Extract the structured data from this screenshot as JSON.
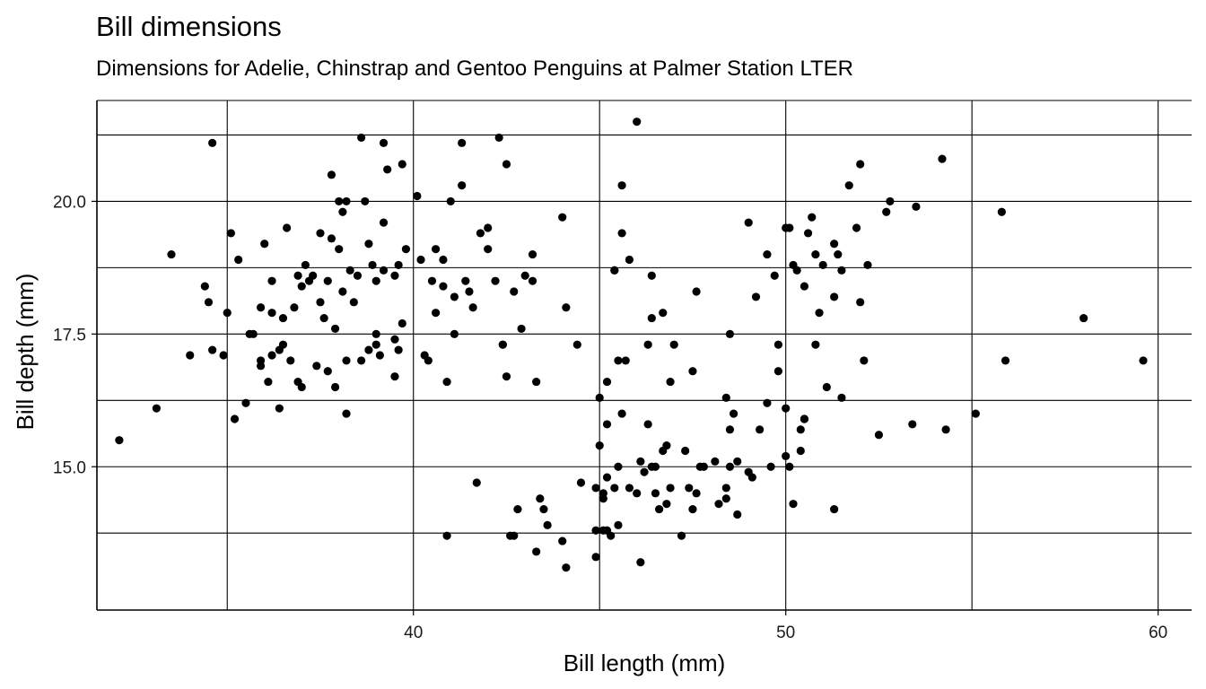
{
  "chart_data": {
    "type": "scatter",
    "title": "Bill dimensions",
    "subtitle": "Dimensions for Adelie, Chinstrap and Gentoo Penguins at Palmer Station LTER",
    "xlabel": "Bill length (mm)",
    "ylabel": "Bill depth (mm)",
    "xlim": [
      31.5,
      60.9
    ],
    "ylim": [
      12.3,
      21.9
    ],
    "x_ticks": [
      40,
      50,
      60
    ],
    "x_tick_labels": [
      "40",
      "50",
      "60"
    ],
    "y_ticks": [
      15.0,
      17.5,
      20.0
    ],
    "y_tick_labels": [
      "15.0",
      "17.5",
      "20.0"
    ],
    "x_minor_gridlines": [
      35,
      45,
      55
    ],
    "y_minor_gridlines": [
      13.75,
      16.25,
      18.75,
      21.25
    ],
    "grid": true,
    "point_color": "#000000",
    "points": [
      [
        32.1,
        15.5
      ],
      [
        33.1,
        16.1
      ],
      [
        33.5,
        19.0
      ],
      [
        34.0,
        17.1
      ],
      [
        34.4,
        18.4
      ],
      [
        34.5,
        18.1
      ],
      [
        34.6,
        21.1
      ],
      [
        34.6,
        17.2
      ],
      [
        35.0,
        17.9
      ],
      [
        35.1,
        19.4
      ],
      [
        35.2,
        15.9
      ],
      [
        35.3,
        18.9
      ],
      [
        35.5,
        16.2
      ],
      [
        35.6,
        17.5
      ],
      [
        35.7,
        17.5
      ],
      [
        35.9,
        16.9
      ],
      [
        35.9,
        17.0
      ],
      [
        35.9,
        18.0
      ],
      [
        36.0,
        19.2
      ],
      [
        36.1,
        16.6
      ],
      [
        36.2,
        17.1
      ],
      [
        36.2,
        18.5
      ],
      [
        36.2,
        17.9
      ],
      [
        36.4,
        17.2
      ],
      [
        36.4,
        16.1
      ],
      [
        36.5,
        17.3
      ],
      [
        36.5,
        17.8
      ],
      [
        36.6,
        19.5
      ],
      [
        36.7,
        17.0
      ],
      [
        36.8,
        18.0
      ],
      [
        36.9,
        16.6
      ],
      [
        37.0,
        18.4
      ],
      [
        37.1,
        18.8
      ],
      [
        37.2,
        18.5
      ],
      [
        37.3,
        18.6
      ],
      [
        37.4,
        16.9
      ],
      [
        37.5,
        19.4
      ],
      [
        37.5,
        18.1
      ],
      [
        37.6,
        17.8
      ],
      [
        37.7,
        18.5
      ],
      [
        37.8,
        20.5
      ],
      [
        37.7,
        16.8
      ],
      [
        37.8,
        19.3
      ],
      [
        37.9,
        17.6
      ],
      [
        37.9,
        16.5
      ],
      [
        38.0,
        19.1
      ],
      [
        38.1,
        18.3
      ],
      [
        38.1,
        19.8
      ],
      [
        38.2,
        16.0
      ],
      [
        38.2,
        17.0
      ],
      [
        38.2,
        20.0
      ],
      [
        38.3,
        18.7
      ],
      [
        38.4,
        18.1
      ],
      [
        38.5,
        18.6
      ],
      [
        38.6,
        17.0
      ],
      [
        38.6,
        21.2
      ],
      [
        38.7,
        20.0
      ],
      [
        38.8,
        17.2
      ],
      [
        38.8,
        19.2
      ],
      [
        38.9,
        18.8
      ],
      [
        39.0,
        17.3
      ],
      [
        39.0,
        18.5
      ],
      [
        39.1,
        17.1
      ],
      [
        39.2,
        21.1
      ],
      [
        39.2,
        19.6
      ],
      [
        39.2,
        18.7
      ],
      [
        39.3,
        20.6
      ],
      [
        39.5,
        17.4
      ],
      [
        39.5,
        16.7
      ],
      [
        39.6,
        17.2
      ],
      [
        39.6,
        18.8
      ],
      [
        39.7,
        17.7
      ],
      [
        39.7,
        20.7
      ],
      [
        39.8,
        19.1
      ],
      [
        40.2,
        18.9
      ],
      [
        40.3,
        17.1
      ],
      [
        40.4,
        17.0
      ],
      [
        40.5,
        18.5
      ],
      [
        40.6,
        17.9
      ],
      [
        40.8,
        18.9
      ],
      [
        40.9,
        16.6
      ],
      [
        41.1,
        18.2
      ],
      [
        41.1,
        17.5
      ],
      [
        41.3,
        20.3
      ],
      [
        41.4,
        18.5
      ],
      [
        41.5,
        18.3
      ],
      [
        41.6,
        18.0
      ],
      [
        41.8,
        19.4
      ],
      [
        42.0,
        19.5
      ],
      [
        42.2,
        18.5
      ],
      [
        42.3,
        21.2
      ],
      [
        42.5,
        20.7
      ],
      [
        42.7,
        18.3
      ],
      [
        42.9,
        17.6
      ],
      [
        43.2,
        19.0
      ],
      [
        43.2,
        18.5
      ],
      [
        34.9,
        17.1
      ],
      [
        36.9,
        18.6
      ],
      [
        37.0,
        16.5
      ],
      [
        38.0,
        20.0
      ],
      [
        39.0,
        17.5
      ],
      [
        39.5,
        18.6
      ],
      [
        40.1,
        20.1
      ],
      [
        40.6,
        19.1
      ],
      [
        40.8,
        18.4
      ],
      [
        41.0,
        20.0
      ],
      [
        41.3,
        21.1
      ],
      [
        42.0,
        19.1
      ],
      [
        42.4,
        17.3
      ],
      [
        43.0,
        18.6
      ],
      [
        43.3,
        16.6
      ],
      [
        44.0,
        19.7
      ],
      [
        44.1,
        18.0
      ],
      [
        44.1,
        13.1
      ],
      [
        42.8,
        14.2
      ],
      [
        45.1,
        14.5
      ],
      [
        46.1,
        13.2
      ],
      [
        46.3,
        15.8
      ],
      [
        47.3,
        15.3
      ],
      [
        48.7,
        15.1
      ],
      [
        49.0,
        14.9
      ],
      [
        50.0,
        15.2
      ],
      [
        48.6,
        16.0
      ],
      [
        50.5,
        15.9
      ],
      [
        49.6,
        15.0
      ],
      [
        47.7,
        15.0
      ],
      [
        45.4,
        14.6
      ],
      [
        46.7,
        15.3
      ],
      [
        43.3,
        13.4
      ],
      [
        46.8,
        15.4
      ],
      [
        40.9,
        13.7
      ],
      [
        49.1,
        14.8
      ],
      [
        42.6,
        13.7
      ],
      [
        44.4,
        17.3
      ],
      [
        44.0,
        13.6
      ],
      [
        42.7,
        13.7
      ],
      [
        45.3,
        13.7
      ],
      [
        43.6,
        13.9
      ],
      [
        45.5,
        13.9
      ],
      [
        44.9,
        13.3
      ],
      [
        45.2,
        13.8
      ],
      [
        46.6,
        14.2
      ],
      [
        48.4,
        14.4
      ],
      [
        44.5,
        14.7
      ],
      [
        48.7,
        14.1
      ],
      [
        50.2,
        14.3
      ],
      [
        46.5,
        14.5
      ],
      [
        49.5,
        16.2
      ],
      [
        47.5,
        14.2
      ],
      [
        47.6,
        14.5
      ],
      [
        48.1,
        15.1
      ],
      [
        45.1,
        14.4
      ],
      [
        47.8,
        15.0
      ],
      [
        50.4,
        15.3
      ],
      [
        45.0,
        15.4
      ],
      [
        47.4,
        14.6
      ],
      [
        46.2,
        14.9
      ],
      [
        48.5,
        15.0
      ],
      [
        51.3,
        14.2
      ],
      [
        45.8,
        14.6
      ],
      [
        46.4,
        15.0
      ],
      [
        48.4,
        14.6
      ],
      [
        50.1,
        15.0
      ],
      [
        46.1,
        15.1
      ],
      [
        45.2,
        14.8
      ],
      [
        46.5,
        15.0
      ],
      [
        46.9,
        14.6
      ],
      [
        45.2,
        15.8
      ],
      [
        48.2,
        14.3
      ],
      [
        50.0,
        16.1
      ],
      [
        47.2,
        13.7
      ],
      [
        46.8,
        14.3
      ],
      [
        50.4,
        15.7
      ],
      [
        45.1,
        13.8
      ],
      [
        46.0,
        14.5
      ],
      [
        43.5,
        14.2
      ],
      [
        45.5,
        15.0
      ],
      [
        44.9,
        13.8
      ],
      [
        41.7,
        14.7
      ],
      [
        43.4,
        14.4
      ],
      [
        48.4,
        16.3
      ],
      [
        49.3,
        15.7
      ],
      [
        45.0,
        16.3
      ],
      [
        50.8,
        17.3
      ],
      [
        46.3,
        17.3
      ],
      [
        45.6,
        16.0
      ],
      [
        50.5,
        15.9
      ],
      [
        45.7,
        17.0
      ],
      [
        46.4,
        18.6
      ],
      [
        47.0,
        17.3
      ],
      [
        51.3,
        19.2
      ],
      [
        46.0,
        21.5
      ],
      [
        52.0,
        20.7
      ],
      [
        50.6,
        19.4
      ],
      [
        49.7,
        18.6
      ],
      [
        46.7,
        17.9
      ],
      [
        50.9,
        17.9
      ],
      [
        51.4,
        19.0
      ],
      [
        45.6,
        19.4
      ],
      [
        52.7,
        19.8
      ],
      [
        50.5,
        18.4
      ],
      [
        49.2,
        18.2
      ],
      [
        51.5,
        18.7
      ],
      [
        50.0,
        19.5
      ],
      [
        51.7,
        20.3
      ],
      [
        46.4,
        17.8
      ],
      [
        55.8,
        19.8
      ],
      [
        54.2,
        20.8
      ],
      [
        42.5,
        16.7
      ],
      [
        45.5,
        17.0
      ],
      [
        58.0,
        17.8
      ],
      [
        46.9,
        16.6
      ],
      [
        50.3,
        18.7
      ],
      [
        49.5,
        19.0
      ],
      [
        52.8,
        20.0
      ],
      [
        45.4,
        18.7
      ],
      [
        51.0,
        18.8
      ],
      [
        48.5,
        17.5
      ],
      [
        50.1,
        19.5
      ],
      [
        47.6,
        18.3
      ],
      [
        53.5,
        19.9
      ],
      [
        49.0,
        19.6
      ],
      [
        50.2,
        18.8
      ],
      [
        51.9,
        19.5
      ],
      [
        50.7,
        19.7
      ],
      [
        52.2,
        18.8
      ],
      [
        51.3,
        18.2
      ],
      [
        50.8,
        19.0
      ],
      [
        52.0,
        18.1
      ],
      [
        49.8,
        17.3
      ],
      [
        45.2,
        16.6
      ],
      [
        45.4,
        18.7
      ],
      [
        42.4,
        17.3
      ],
      [
        48.5,
        15.7
      ],
      [
        52.5,
        15.6
      ],
      [
        53.4,
        15.8
      ],
      [
        54.3,
        15.7
      ],
      [
        55.1,
        16.0
      ],
      [
        55.9,
        17.0
      ],
      [
        59.6,
        17.0
      ],
      [
        49.8,
        16.8
      ],
      [
        51.1,
        16.5
      ],
      [
        52.1,
        17.0
      ],
      [
        51.5,
        16.3
      ],
      [
        47.5,
        16.8
      ],
      [
        45.8,
        18.9
      ],
      [
        45.6,
        20.3
      ],
      [
        44.9,
        14.6
      ]
    ]
  }
}
